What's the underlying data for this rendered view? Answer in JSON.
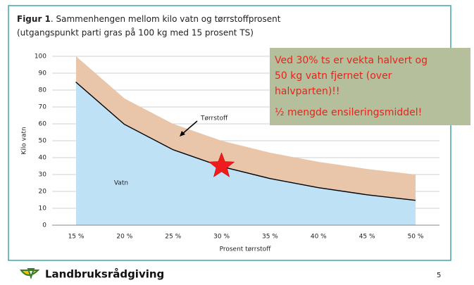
{
  "chart_data": {
    "type": "stacked_area",
    "title": "Figur 1",
    "title_rest": ". Sammenhengen mellom kilo vatn og tørrstoffprosent",
    "subtitle": "(utgangspunkt parti gras på 100 kg med 15 prosent TS)",
    "categories": [
      "15 %",
      "20 %",
      "25 %",
      "30 %",
      "35 %",
      "40 %",
      "45 %",
      "50 %"
    ],
    "series": [
      {
        "name": "Vatn",
        "color": "#bfe1f6",
        "line_color": "#000000",
        "values": [
          85,
          60,
          45,
          35,
          27.9,
          22.5,
          18.3,
          15
        ]
      },
      {
        "name": "Tørrstoff",
        "color": "#e9c6aa",
        "values": [
          15,
          15,
          15,
          15,
          15,
          15,
          15,
          15
        ]
      }
    ],
    "ylim": [
      0,
      100
    ],
    "yticks": [
      0,
      10,
      20,
      30,
      40,
      50,
      60,
      70,
      80,
      90,
      100
    ],
    "grid": true,
    "ylabel": "Kilo vatn",
    "xlabel": "Prosent tørrstoff",
    "annotation": [
      "Ved 30% ts er vekta halvert og",
      "50 kg vatn fjernet (over",
      "halvparten)!!",
      "½ mengde ensileringsmiddel!"
    ]
  },
  "footer": "Landbruksrådgiving",
  "page_number": "5"
}
